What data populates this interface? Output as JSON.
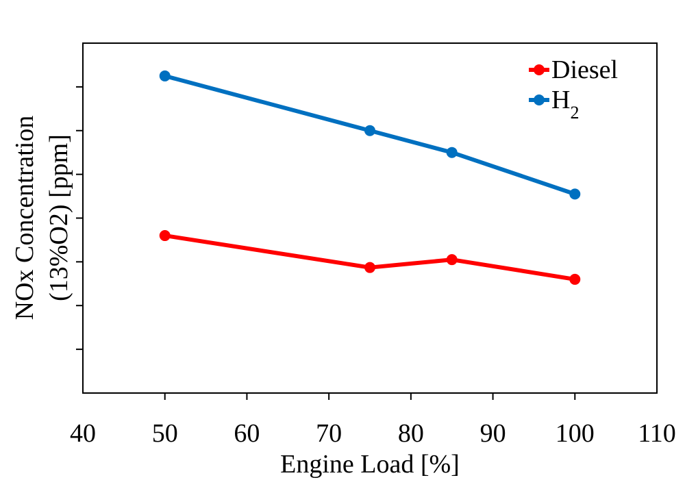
{
  "chart_data": {
    "type": "line",
    "xlabel": "Engine Load [%]",
    "ylabel_line1": "NOx Concentration",
    "ylabel_line2": "(13%O2) [ppm]",
    "xlim": [
      40,
      110
    ],
    "x_ticks": [
      40,
      50,
      60,
      70,
      80,
      90,
      100,
      110
    ],
    "x_tick_labels": [
      "40",
      "50",
      "60",
      "70",
      "80",
      "90",
      "100",
      "110"
    ],
    "ylim": [
      0,
      8
    ],
    "y_ticks": [
      1,
      2,
      3,
      4,
      5,
      6,
      7
    ],
    "y_tick_labels_shown": false,
    "grid": false,
    "legend_position": "top-right",
    "x": [
      50,
      75,
      85,
      100
    ],
    "series": [
      {
        "name": "Diesel",
        "legend_base": "Diesel",
        "legend_sub": "",
        "color": "#ff0000",
        "values": [
          3.6,
          2.87,
          3.05,
          2.6
        ]
      },
      {
        "name": "H2",
        "legend_base": "H",
        "legend_sub": "2",
        "color": "#0070c0",
        "values": [
          7.25,
          6.0,
          5.5,
          4.55
        ]
      }
    ]
  }
}
